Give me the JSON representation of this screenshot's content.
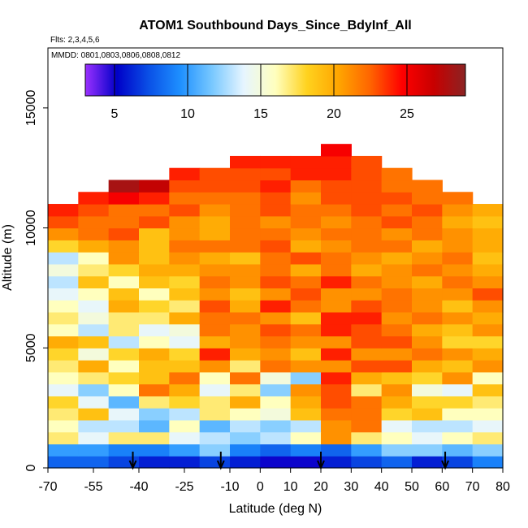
{
  "chart_data": {
    "type": "heatmap",
    "title": "ATOM1 Southbound Days_Since_BdyInf_All",
    "flights_note": "Flts: 2,3,4,5,6",
    "dates_note": "MMDD: 0801,0803,0806,0808,0812",
    "xlabel": "Latitude (deg N)",
    "ylabel": "Altitude (m)",
    "xlim": [
      -70,
      80
    ],
    "ylim": [
      0,
      17500
    ],
    "x_ticks": [
      -70,
      -55,
      -40,
      -25,
      -10,
      0,
      10,
      20,
      30,
      40,
      50,
      60,
      70,
      80
    ],
    "x_tick_labels": [
      "-70",
      "-55",
      "-40",
      "-25",
      "-10",
      "0",
      "10",
      "20",
      "30",
      "40",
      "50",
      "60",
      "70",
      "80"
    ],
    "y_ticks": [
      0,
      5000,
      10000,
      15000
    ],
    "y_tick_labels": [
      "0",
      "5000",
      "10000",
      "15000"
    ],
    "colorbar": {
      "min": 3,
      "max": 29,
      "ticks": [
        5,
        10,
        15,
        20,
        25
      ],
      "tick_labels": [
        "5",
        "10",
        "15",
        "20",
        "25"
      ],
      "colors": [
        "#9b30ff",
        "#0000c8",
        "#0a50e6",
        "#1e90ff",
        "#78c8ff",
        "#e6f5ff",
        "#ffffbe",
        "#ffd21e",
        "#ffa500",
        "#ff6400",
        "#ff0000",
        "#c80000",
        "#8b2323"
      ]
    },
    "lat_bands": [
      -65,
      -55,
      -45,
      -35,
      -25,
      -15,
      -5,
      5,
      15,
      25,
      35,
      45,
      55,
      65,
      75
    ],
    "altitude_levels": [
      250,
      750,
      1250,
      1750,
      2250,
      2750,
      3250,
      3750,
      4250,
      4750,
      5250,
      5750,
      6250,
      6750,
      7250,
      7750,
      8250,
      8750,
      9250,
      9750,
      10250,
      10750,
      11250,
      11750,
      12250,
      12750,
      13250
    ],
    "values": [
      [
        8,
        8,
        7,
        6,
        6,
        7,
        6,
        5,
        5,
        6,
        7,
        8,
        6,
        7,
        9
      ],
      [
        10,
        10,
        9,
        9,
        10,
        12,
        9,
        8,
        9,
        8,
        10,
        12,
        12,
        11,
        12
      ],
      [
        17,
        14,
        17,
        17,
        14,
        13,
        12,
        13,
        16,
        21,
        17,
        16,
        14,
        16,
        17
      ],
      [
        16,
        13,
        13,
        11,
        16,
        11,
        13,
        12,
        13,
        21,
        22,
        14,
        13,
        13,
        14
      ],
      [
        17,
        19,
        14,
        12,
        13,
        17,
        16,
        15,
        19,
        22,
        22,
        18,
        19,
        16,
        16
      ],
      [
        18,
        14,
        11,
        17,
        18,
        17,
        20,
        16,
        20,
        23,
        22,
        20,
        18,
        18,
        17
      ],
      [
        14,
        12,
        16,
        22,
        20,
        14,
        17,
        12,
        21,
        23,
        17,
        21,
        15,
        14,
        19
      ],
      [
        16,
        17,
        18,
        19,
        22,
        16,
        22,
        15,
        12,
        24,
        20,
        19,
        18,
        21,
        16
      ],
      [
        17,
        20,
        16,
        19,
        19,
        21,
        17,
        22,
        21,
        21,
        23,
        23,
        20,
        19,
        21
      ],
      [
        18,
        15,
        18,
        20,
        18,
        24,
        20,
        21,
        19,
        24,
        21,
        21,
        22,
        21,
        20
      ],
      [
        20,
        19,
        13,
        16,
        14,
        20,
        21,
        22,
        21,
        21,
        23,
        23,
        21,
        18,
        18
      ],
      [
        16,
        13,
        17,
        14,
        15,
        22,
        21,
        23,
        22,
        24,
        23,
        22,
        20,
        19,
        21
      ],
      [
        17,
        15,
        17,
        17,
        20,
        22,
        22,
        21,
        19,
        24,
        24,
        21,
        22,
        21,
        20
      ],
      [
        16,
        14,
        20,
        18,
        17,
        23,
        20,
        24,
        22,
        21,
        23,
        22,
        21,
        19,
        21
      ],
      [
        14,
        16,
        19,
        16,
        19,
        21,
        19,
        21,
        23,
        21,
        21,
        22,
        21,
        21,
        23
      ],
      [
        13,
        19,
        16,
        19,
        18,
        22,
        21,
        23,
        22,
        24,
        22,
        21,
        20,
        22,
        21
      ],
      [
        15,
        17,
        18,
        20,
        20,
        21,
        21,
        22,
        20,
        22,
        20,
        21,
        22,
        21,
        20
      ],
      [
        13,
        16,
        21,
        19,
        21,
        20,
        19,
        22,
        23,
        22,
        21,
        20,
        21,
        22,
        19
      ],
      [
        18,
        20,
        21,
        19,
        22,
        22,
        22,
        23,
        20,
        21,
        22,
        22,
        20,
        21,
        20
      ],
      [
        21,
        22,
        23,
        19,
        21,
        20,
        22,
        22,
        21,
        22,
        22,
        21,
        22,
        21,
        20
      ],
      [
        23,
        22,
        22,
        23,
        21,
        20,
        22,
        21,
        22,
        21,
        22,
        23,
        22,
        20,
        19
      ],
      [
        24,
        23,
        22,
        22,
        23,
        21,
        22,
        23,
        22,
        22,
        23,
        22,
        23,
        21,
        20
      ],
      [
        null,
        24,
        25,
        24,
        22,
        22,
        22,
        23,
        21,
        23,
        23,
        23,
        22,
        22,
        null
      ],
      [
        null,
        null,
        28,
        27,
        23,
        23,
        23,
        24,
        22,
        23,
        23,
        22,
        22,
        null,
        null
      ],
      [
        null,
        null,
        null,
        null,
        24,
        23,
        23,
        23,
        24,
        24,
        23,
        22,
        null,
        null,
        null
      ],
      [
        null,
        null,
        null,
        null,
        null,
        null,
        24,
        24,
        24,
        24,
        23,
        null,
        null,
        null,
        null
      ],
      [
        null,
        null,
        null,
        null,
        null,
        null,
        null,
        null,
        null,
        25,
        null,
        null,
        null,
        null,
        null
      ]
    ],
    "arrow_latitudes": [
      -42,
      -13,
      20,
      61
    ],
    "grid": false,
    "legend": "top (color bar inside plot)"
  }
}
